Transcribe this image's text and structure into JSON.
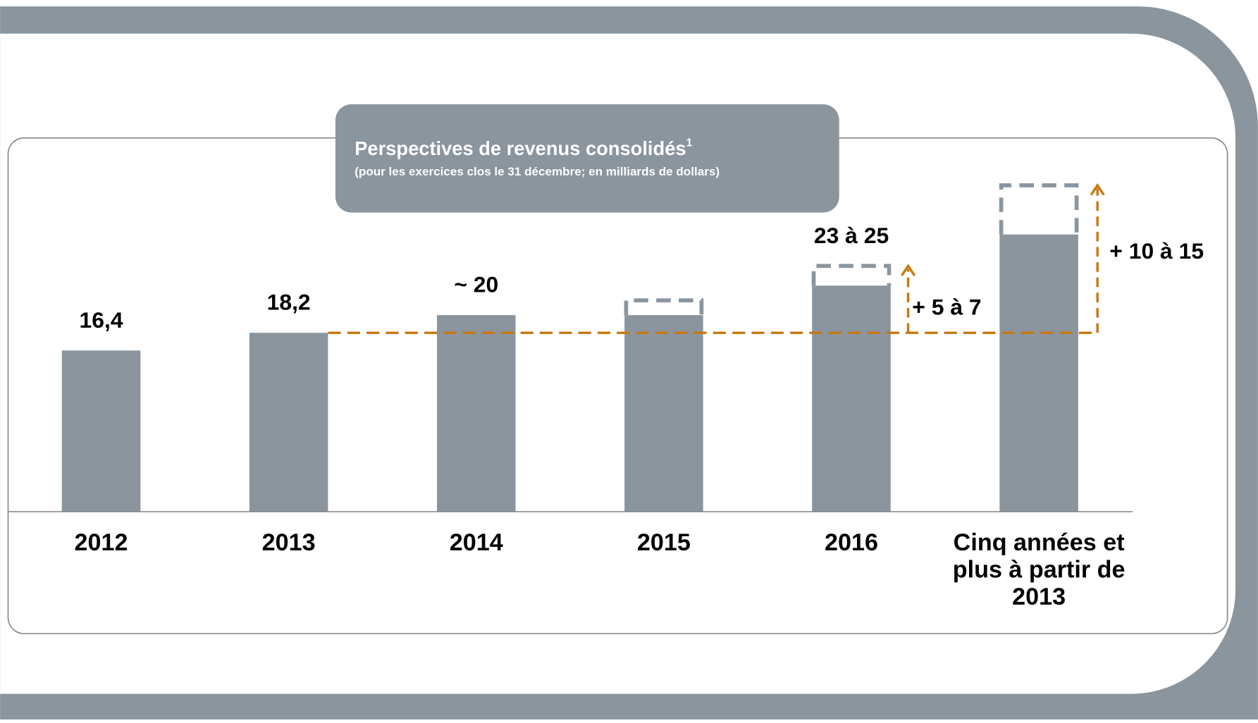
{
  "chart_data": {
    "type": "bar",
    "title": "Perspectives de revenus consolidés",
    "title_note": "1",
    "subtitle": "(pour les exercices clos le 31 décembre; en milliards de dollars)",
    "categories": [
      "2012",
      "2013",
      "2014",
      "2015",
      "2016",
      "Cinq années et plus à partir de 2013"
    ],
    "values": [
      16.4,
      18.2,
      20,
      20,
      23,
      28.2
    ],
    "range_high": [
      null,
      null,
      null,
      21.5,
      25,
      33.2
    ],
    "value_labels": [
      "16,4",
      "18,2",
      "~ 20",
      null,
      "23 à 25",
      null
    ],
    "color": "#8a959e",
    "reference_value": 18.2,
    "reference_color": "#c8780f",
    "annotations": [
      "+ 5 à 7",
      "+ 10 à 15"
    ],
    "ylim": [
      0,
      35
    ]
  }
}
